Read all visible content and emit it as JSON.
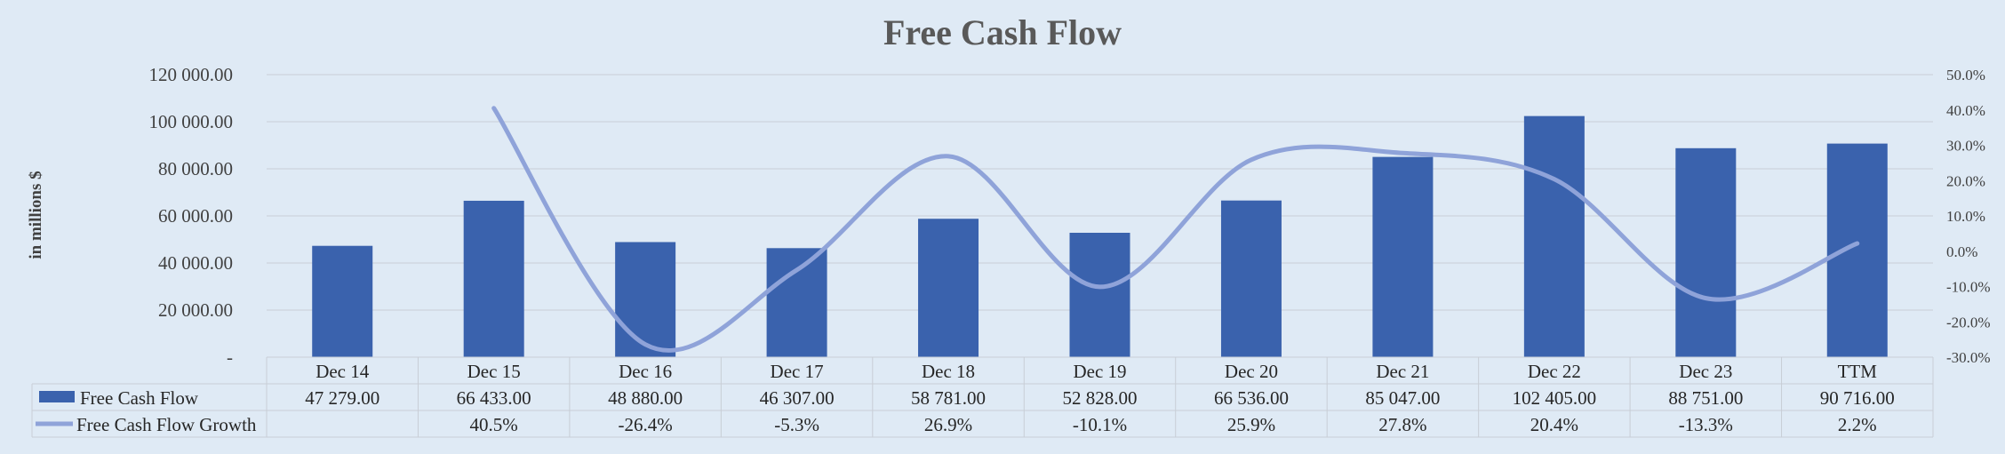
{
  "chart_data": {
    "type": "bar",
    "title": "Free Cash Flow",
    "ylabel": "in millions $",
    "categories": [
      "Dec 14",
      "Dec 15",
      "Dec 16",
      "Dec 17",
      "Dec 18",
      "Dec 19",
      "Dec 20",
      "Dec 21",
      "Dec 22",
      "Dec 23",
      "TTM"
    ],
    "ylim": [
      0,
      120000
    ],
    "y2lim": [
      -0.3,
      0.5
    ],
    "y_ticks": [
      "-",
      "20 000.00",
      "40 000.00",
      "60 000.00",
      "80 000.00",
      "100 000.00",
      "120 000.00"
    ],
    "y2_ticks": [
      "-30.0%",
      "-20.0%",
      "-10.0%",
      "0.0%",
      "10.0%",
      "20.0%",
      "30.0%",
      "40.0%",
      "50.0%"
    ],
    "grid": true,
    "legend": "data table",
    "series": [
      {
        "name": "Free Cash Flow",
        "type": "bar",
        "axis": "left",
        "color": "#3a62ad",
        "values": [
          47279,
          66433,
          48880,
          46307,
          58781,
          52828,
          66536,
          85047,
          102405,
          88751,
          90716
        ],
        "labels": [
          "47 279.00",
          "66 433.00",
          "48 880.00",
          "46 307.00",
          "58 781.00",
          "52 828.00",
          "66 536.00",
          "85 047.00",
          "102 405.00",
          "88 751.00",
          "90 716.00"
        ]
      },
      {
        "name": "Free Cash Flow Growth",
        "type": "line",
        "axis": "right",
        "color": "#8fa3d9",
        "values": [
          null,
          0.405,
          -0.264,
          -0.053,
          0.269,
          -0.101,
          0.259,
          0.278,
          0.204,
          -0.133,
          0.022
        ],
        "labels": [
          "",
          "40.5%",
          "-26.4%",
          "-5.3%",
          "26.9%",
          "-10.1%",
          "25.9%",
          "27.8%",
          "20.4%",
          "-13.3%",
          "2.2%"
        ]
      }
    ]
  }
}
